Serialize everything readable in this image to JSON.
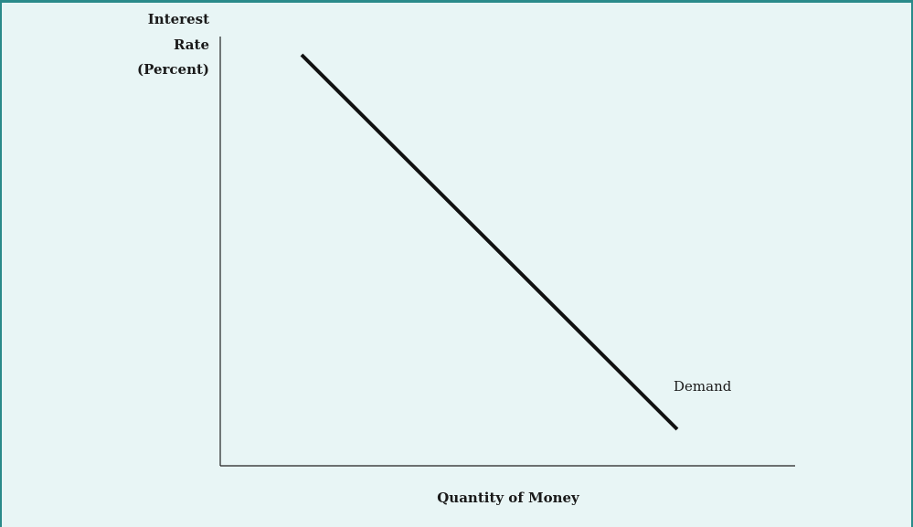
{
  "diagram": {
    "y_axis_label": [
      "Interest",
      "Rate",
      "(Percent)"
    ],
    "x_axis_label": "Quantity of Money",
    "curve_label": "Demand"
  }
}
